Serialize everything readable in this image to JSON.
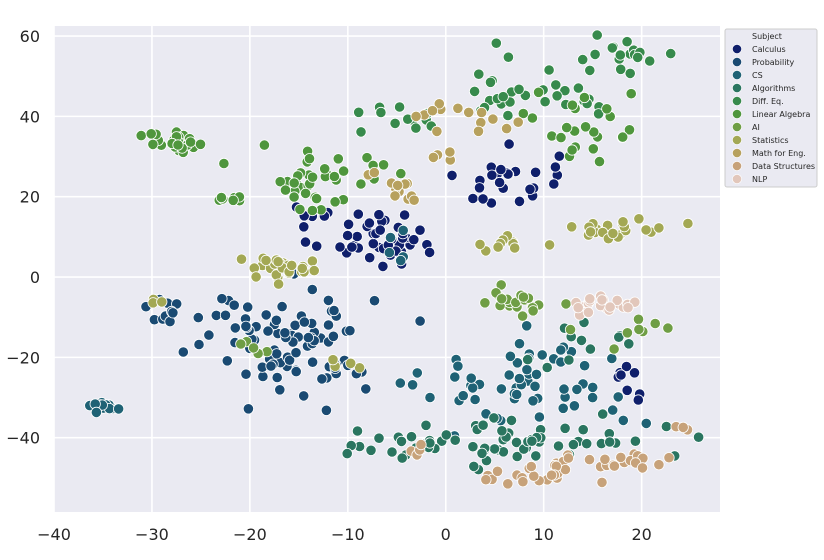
{
  "chart_data": {
    "type": "scatter",
    "title": "",
    "xlabel": "",
    "ylabel": "",
    "xlim": [
      -40,
      28
    ],
    "ylim": [
      -58.5,
      62.5
    ],
    "x_ticks": [
      -40,
      -30,
      -20,
      -10,
      0,
      10,
      20
    ],
    "y_ticks": [
      -40,
      -20,
      0,
      20,
      40,
      60
    ],
    "x_tick_labels": [
      "−40",
      "−30",
      "−20",
      "−10",
      "0",
      "10",
      "20"
    ],
    "y_tick_labels": [
      "−40",
      "−20",
      "0",
      "20",
      "40",
      "60"
    ],
    "grid": true,
    "legend": {
      "title": "Subject",
      "placement": "top-right"
    },
    "series": [
      {
        "name": "Calculus",
        "color": "#0f1f6b",
        "clusters": [
          {
            "cx": -7.5,
            "cy": 10,
            "sx": 3.2,
            "sy": 3.8,
            "n": 45
          },
          {
            "cx": 6.5,
            "cy": 24,
            "sx": 2.5,
            "sy": 3.6,
            "n": 28
          },
          {
            "cx": 18.5,
            "cy": -25,
            "sx": 1.0,
            "sy": 4.0,
            "n": 8
          },
          {
            "cx": -14,
            "cy": 15.5,
            "sx": 1.5,
            "sy": 0.5,
            "n": 4
          }
        ]
      },
      {
        "name": "Probability",
        "color": "#1a4a72",
        "clusters": [
          {
            "cx": -15.5,
            "cy": -16,
            "sx": 4.0,
            "sy": 6.5,
            "n": 85
          },
          {
            "cx": -27,
            "cy": -8,
            "sx": 3.2,
            "sy": 2.0,
            "n": 16
          },
          {
            "cx": -10,
            "cy": -22,
            "sx": 1.2,
            "sy": 2.0,
            "n": 4
          }
        ]
      },
      {
        "name": "CS",
        "color": "#1f6275",
        "clusters": [
          {
            "cx": -35,
            "cy": -32,
            "sx": 0.9,
            "sy": 0.8,
            "n": 16
          },
          {
            "cx": 9,
            "cy": -27,
            "sx": 5.5,
            "sy": 5.5,
            "n": 60
          },
          {
            "cx": -4.5,
            "cy": 7,
            "sx": 1.2,
            "sy": 3.5,
            "n": 5
          }
        ]
      },
      {
        "name": "Algorithms",
        "color": "#2a7560",
        "clusters": [
          {
            "cx": 8,
            "cy": -41,
            "sx": 7.0,
            "sy": 3.5,
            "n": 55
          },
          {
            "cx": -3,
            "cy": -42,
            "sx": 2.5,
            "sy": 2.0,
            "n": 15
          },
          {
            "cx": 14,
            "cy": -16,
            "sx": 3.5,
            "sy": 4.0,
            "n": 12
          }
        ]
      },
      {
        "name": "Diff. Eq.",
        "color": "#378a4c",
        "clusters": [
          {
            "cx": 17,
            "cy": 55,
            "sx": 3.2,
            "sy": 2.0,
            "n": 18
          },
          {
            "cx": 10,
            "cy": 47,
            "sx": 4.5,
            "sy": 4.0,
            "n": 30
          },
          {
            "cx": -4,
            "cy": 40,
            "sx": 3.0,
            "sy": 2.2,
            "n": 12
          }
        ]
      },
      {
        "name": "Linear Algebra",
        "color": "#4f963d",
        "clusters": [
          {
            "cx": -27.5,
            "cy": 33,
            "sx": 1.4,
            "sy": 1.4,
            "n": 28
          },
          {
            "cx": -14,
            "cy": 24,
            "sx": 3.2,
            "sy": 4.0,
            "n": 32
          },
          {
            "cx": -22,
            "cy": 20,
            "sx": 0.9,
            "sy": 0.8,
            "n": 7
          },
          {
            "cx": 15,
            "cy": 37,
            "sx": 3.0,
            "sy": 5.0,
            "n": 24
          },
          {
            "cx": -9,
            "cy": 28,
            "sx": 1.5,
            "sy": 2.5,
            "n": 8
          }
        ]
      },
      {
        "name": "AI",
        "color": "#6f9e45",
        "clusters": [
          {
            "cx": 7,
            "cy": -6.5,
            "sx": 2.0,
            "sy": 1.5,
            "n": 22
          },
          {
            "cx": 20,
            "cy": -13,
            "sx": 2.5,
            "sy": 3.0,
            "n": 8
          },
          {
            "cx": -20,
            "cy": -18,
            "sx": 1.5,
            "sy": 1.2,
            "n": 5
          }
        ]
      },
      {
        "name": "Statistics",
        "color": "#a3a854",
        "clusters": [
          {
            "cx": -16.5,
            "cy": 2.5,
            "sx": 2.8,
            "sy": 1.3,
            "n": 26
          },
          {
            "cx": 17.5,
            "cy": 12,
            "sx": 2.5,
            "sy": 1.3,
            "n": 22
          },
          {
            "cx": 6,
            "cy": 8.5,
            "sx": 2.5,
            "sy": 1.0,
            "n": 10
          },
          {
            "cx": -30,
            "cy": -6,
            "sx": 0.6,
            "sy": 0.5,
            "n": 3
          },
          {
            "cx": -10.5,
            "cy": -21.5,
            "sx": 0.8,
            "sy": 0.7,
            "n": 4
          }
        ]
      },
      {
        "name": "Math for Eng.",
        "color": "#b7a15e",
        "clusters": [
          {
            "cx": -4.5,
            "cy": 21.5,
            "sx": 0.8,
            "sy": 1.2,
            "n": 10
          },
          {
            "cx": 1,
            "cy": 40,
            "sx": 3.0,
            "sy": 2.0,
            "n": 14
          },
          {
            "cx": 0,
            "cy": 31,
            "sx": 1.0,
            "sy": 1.0,
            "n": 4
          },
          {
            "cx": -8,
            "cy": 25,
            "sx": 0.5,
            "sy": 0.4,
            "n": 2
          }
        ]
      },
      {
        "name": "Data Structures",
        "color": "#c7a27a",
        "clusters": [
          {
            "cx": 17.5,
            "cy": -46.5,
            "sx": 3.5,
            "sy": 1.2,
            "n": 20
          },
          {
            "cx": 9,
            "cy": -48.5,
            "sx": 3.0,
            "sy": 2.2,
            "n": 22
          },
          {
            "cx": 24.5,
            "cy": -37.5,
            "sx": 0.6,
            "sy": 0.5,
            "n": 3
          },
          {
            "cx": -2,
            "cy": -43,
            "sx": 1.2,
            "sy": 0.8,
            "n": 4
          }
        ]
      },
      {
        "name": "NLP",
        "color": "#e2c7bb",
        "clusters": [
          {
            "cx": 16,
            "cy": -7,
            "sx": 1.5,
            "sy": 1.0,
            "n": 22
          }
        ]
      }
    ]
  }
}
